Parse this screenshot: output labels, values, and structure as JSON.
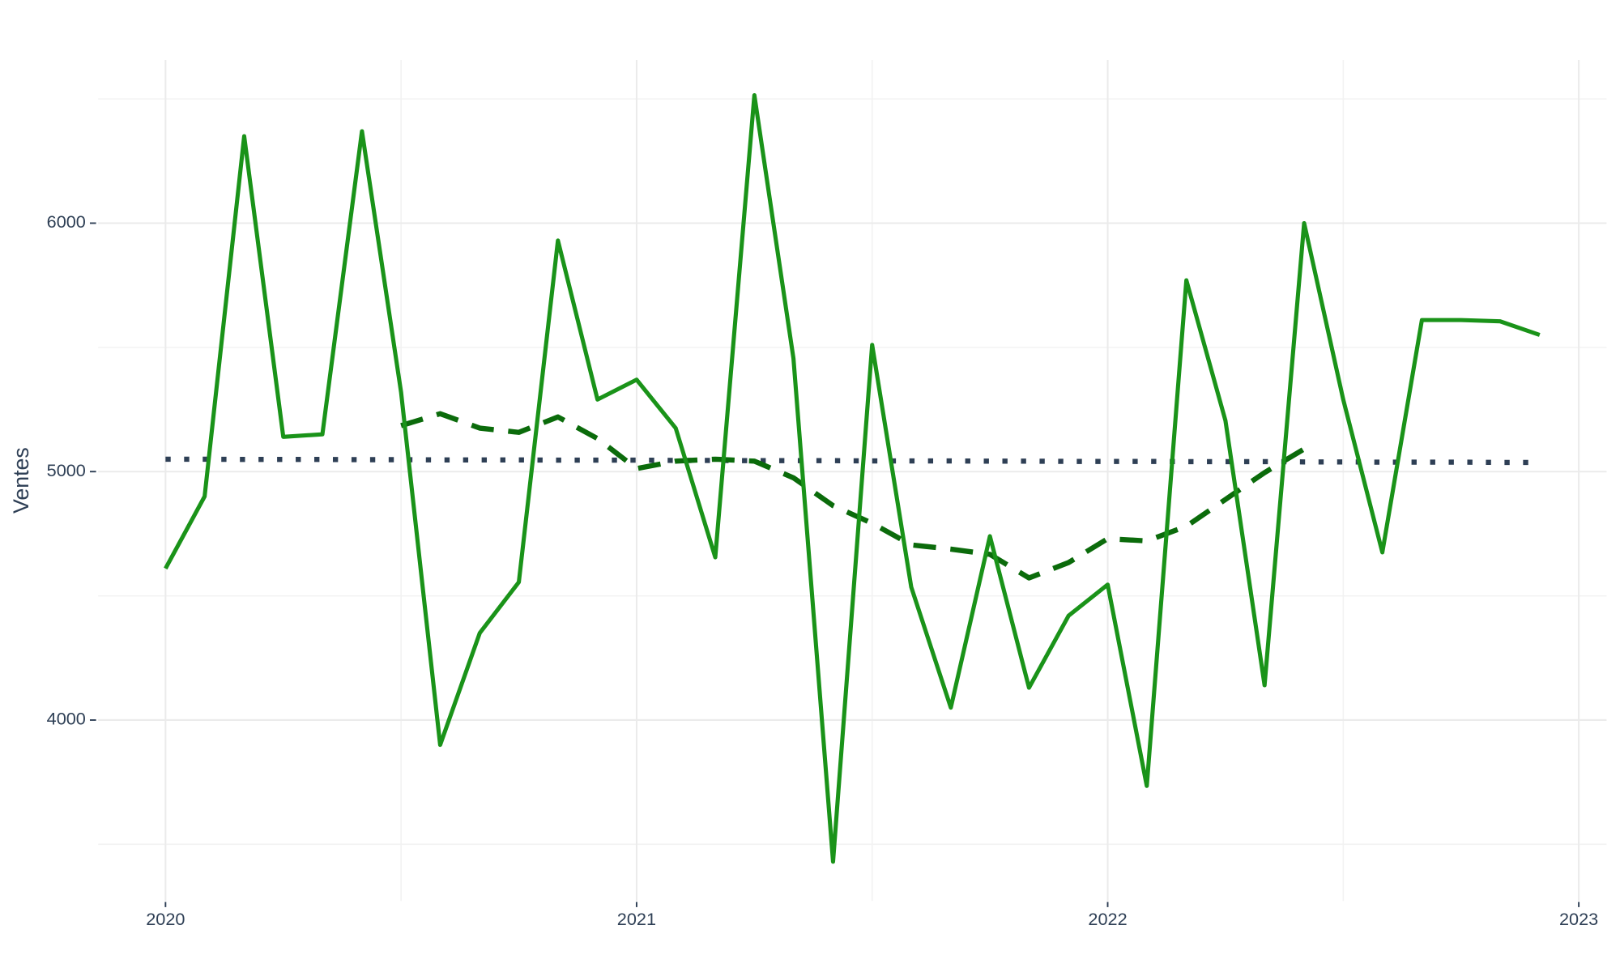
{
  "chart_data": {
    "type": "line",
    "y_label": "Ventes",
    "x": [
      2020,
      2020.083,
      2020.167,
      2020.25,
      2020.333,
      2020.417,
      2020.5,
      2020.583,
      2020.667,
      2020.75,
      2020.833,
      2020.917,
      2021,
      2021.083,
      2021.167,
      2021.25,
      2021.333,
      2021.417,
      2021.5,
      2021.583,
      2021.667,
      2021.75,
      2021.833,
      2021.917,
      2022,
      2022.083,
      2022.167,
      2022.25,
      2022.333,
      2022.417,
      2022.5,
      2022.583,
      2022.667,
      2022.75,
      2022.833,
      2022.917
    ],
    "series": [
      {
        "color": "#1a9319",
        "style": "solid",
        "values": [
          4610,
          4900,
          6350,
          5140,
          5150,
          6370,
          5320,
          3900,
          4350,
          4555,
          5930,
          5290,
          5370,
          5175,
          4655,
          6515,
          5455,
          3430,
          5510,
          4535,
          4050,
          4740,
          4130,
          4420,
          4545,
          3735,
          5770,
          5205,
          4140,
          6000,
          5290,
          4675,
          5610,
          5610,
          5605,
          5550
        ]
      },
      {
        "color": "#0b6b0b",
        "style": "dashed",
        "values": [
          null,
          null,
          null,
          null,
          null,
          null,
          5185,
          5233,
          5175,
          5158,
          5220,
          5133,
          5012,
          5042,
          5050,
          5042,
          4975,
          4863,
          4792,
          4705,
          4688,
          4667,
          4572,
          4634,
          4730,
          4721,
          4780,
          4888,
          4996,
          5091,
          null,
          null,
          null,
          null,
          null,
          null
        ]
      },
      {
        "color": "#2e3f55",
        "style": "dotted",
        "values": [
          5050,
          5050,
          5049,
          5049,
          5049,
          5048,
          5048,
          5047,
          5047,
          5047,
          5046,
          5046,
          5046,
          5045,
          5045,
          5044,
          5044,
          5044,
          5043,
          5043,
          5043,
          5042,
          5042,
          5041,
          5041,
          5041,
          5040,
          5040,
          5040,
          5039,
          5039,
          5038,
          5038,
          5038,
          5037,
          5037
        ]
      }
    ],
    "xlim": [
      2019.857,
      2023.059
    ],
    "xticks": [
      2020,
      2021,
      2022,
      2023
    ],
    "x_minor_ticks": [
      2020.5,
      2021.5,
      2022.5
    ],
    "ylim": [
      3272,
      6657
    ],
    "yticks": [
      4000,
      5000,
      6000
    ],
    "y_minor_ticks": [
      3500,
      4500,
      5500,
      6500
    ],
    "grid": true
  }
}
